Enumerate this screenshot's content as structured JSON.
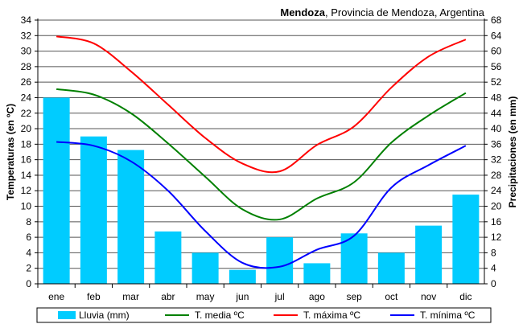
{
  "chart_data": {
    "type": "bar+line",
    "title_bold": "Mendoza",
    "title_rest": ", Provincia de Mendoza, Argentina",
    "ylabel_left": "Temperaturas (en ºC)",
    "ylabel_right": "Precipitaciones (en mm)",
    "ylim_left": [
      0,
      34
    ],
    "ylim_right": [
      0,
      68
    ],
    "yticks_left": [
      0,
      2,
      4,
      6,
      8,
      10,
      12,
      14,
      16,
      18,
      20,
      22,
      24,
      26,
      28,
      30,
      32,
      34
    ],
    "yticks_right": [
      0,
      4,
      8,
      12,
      16,
      20,
      24,
      28,
      32,
      36,
      40,
      44,
      48,
      52,
      56,
      60,
      64,
      68
    ],
    "grid": true,
    "legend_placement": "bottom",
    "categories": [
      "ene",
      "feb",
      "mar",
      "abr",
      "may",
      "jun",
      "jul",
      "ago",
      "sep",
      "oct",
      "nov",
      "dic"
    ],
    "bars": {
      "name": "Lluvia (mm)",
      "axis": "right",
      "color": "#00CCFF",
      "values": [
        48,
        38,
        34.5,
        13.5,
        8,
        3.6,
        12,
        5.3,
        13,
        8,
        15,
        23
      ]
    },
    "series": [
      {
        "name": "T. media ºC",
        "axis": "left",
        "color": "#008000",
        "values": [
          25.1,
          24.4,
          22.0,
          18.1,
          13.8,
          9.6,
          8.3,
          11.0,
          13.1,
          18.2,
          21.7,
          24.6
        ]
      },
      {
        "name": "T. máxima ºC",
        "axis": "left",
        "color": "#FF0000",
        "values": [
          31.9,
          31.0,
          27.4,
          23.1,
          18.8,
          15.5,
          14.5,
          17.9,
          20.3,
          25.3,
          29.3,
          31.5
        ]
      },
      {
        "name": "T. mínima ºC",
        "axis": "left",
        "color": "#0000FF",
        "values": [
          18.3,
          17.8,
          15.8,
          12.0,
          6.8,
          2.7,
          2.2,
          4.4,
          6.2,
          12.4,
          15.3,
          17.8
        ]
      }
    ]
  }
}
